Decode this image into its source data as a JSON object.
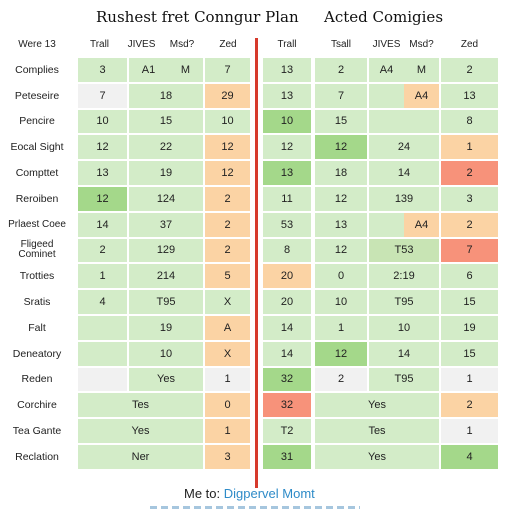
{
  "titles": {
    "left": "Rushest fret Conngur Plan",
    "right": "Acted Comigies"
  },
  "colors": {
    "g": "#d3ecc8",
    "G": "#a4d88a",
    "o": "#fbd3a4",
    "r": "#f7927a",
    "w": "#f1f1f1",
    "m": "#c8e4b4",
    "divider": "#d63a2c"
  },
  "left": {
    "header": [
      "Were 13",
      "Trall",
      "JIVES",
      "Msd?",
      "Zed"
    ],
    "rows": [
      {
        "label": "Complies",
        "cells": [
          {
            "t": "3",
            "c": "g"
          },
          {
            "t": "A1",
            "c": "g"
          },
          {
            "t": "M",
            "c": "g"
          },
          {
            "t": "7",
            "c": "g"
          }
        ]
      },
      {
        "label": "Peteseire",
        "cells": [
          {
            "t": "7",
            "c": "w"
          },
          {
            "t": "18",
            "c": "g",
            "s": 2
          },
          {
            "t": "29",
            "c": "o"
          }
        ]
      },
      {
        "label": "Pencire",
        "cells": [
          {
            "t": "10",
            "c": "g"
          },
          {
            "t": "15",
            "c": "g",
            "s": 2
          },
          {
            "t": "10",
            "c": "g"
          }
        ]
      },
      {
        "label": "Eocal Sight",
        "cells": [
          {
            "t": "12",
            "c": "g"
          },
          {
            "t": "22",
            "c": "g",
            "s": 2
          },
          {
            "t": "12",
            "c": "o"
          }
        ]
      },
      {
        "label": "Compttet",
        "cells": [
          {
            "t": "13",
            "c": "g"
          },
          {
            "t": "19",
            "c": "g",
            "s": 2
          },
          {
            "t": "12",
            "c": "o"
          }
        ]
      },
      {
        "label": "Reroiben",
        "cells": [
          {
            "t": "12",
            "c": "G"
          },
          {
            "t": "124",
            "c": "g",
            "s": 2
          },
          {
            "t": "2",
            "c": "o"
          }
        ]
      },
      {
        "label": "Prlaest Coee",
        "cells": [
          {
            "t": "14",
            "c": "g"
          },
          {
            "t": "37",
            "c": "g",
            "s": 2
          },
          {
            "t": "2",
            "c": "o"
          }
        ]
      },
      {
        "label": "Fligeed Cominet",
        "cells": [
          {
            "t": "2",
            "c": "g"
          },
          {
            "t": "129",
            "c": "g",
            "s": 2
          },
          {
            "t": "2",
            "c": "o"
          }
        ]
      },
      {
        "label": "Trotties",
        "cells": [
          {
            "t": "1",
            "c": "g"
          },
          {
            "t": "214",
            "c": "g",
            "s": 2
          },
          {
            "t": "5",
            "c": "o"
          }
        ]
      },
      {
        "label": "Sratis",
        "cells": [
          {
            "t": "4",
            "c": "g"
          },
          {
            "t": "T95",
            "c": "g",
            "s": 2
          },
          {
            "t": "X",
            "c": "g"
          }
        ]
      },
      {
        "label": "Falt",
        "cells": [
          {
            "t": "",
            "c": "g"
          },
          {
            "t": "19",
            "c": "g",
            "s": 2
          },
          {
            "t": "A",
            "c": "o"
          }
        ]
      },
      {
        "label": "Deneatory",
        "cells": [
          {
            "t": "",
            "c": "g"
          },
          {
            "t": "10",
            "c": "g",
            "s": 2
          },
          {
            "t": "X",
            "c": "o"
          }
        ]
      },
      {
        "label": "Reden",
        "cells": [
          {
            "t": "",
            "c": "w"
          },
          {
            "t": "Yes",
            "c": "g",
            "s": 2
          },
          {
            "t": "1",
            "c": "w"
          }
        ]
      },
      {
        "label": "Corchire",
        "cells": [
          {
            "t": "Tes",
            "c": "g",
            "s": 3
          },
          {
            "t": "0",
            "c": "o"
          }
        ]
      },
      {
        "label": "Tea Gante",
        "cells": [
          {
            "t": "Yes",
            "c": "g",
            "s": 3
          },
          {
            "t": "1",
            "c": "o"
          }
        ]
      },
      {
        "label": "Reclation",
        "cells": [
          {
            "t": "Ner",
            "c": "g",
            "s": 3
          },
          {
            "t": "3",
            "c": "o"
          }
        ]
      }
    ]
  },
  "right": {
    "header": [
      "Trall",
      "Tsall",
      "JIVES",
      "Msd?",
      "Zed"
    ],
    "rows": [
      {
        "cells": [
          {
            "t": "13",
            "c": "g"
          },
          {
            "t": "2",
            "c": "g"
          },
          {
            "t": "A4",
            "c": "g"
          },
          {
            "t": "M",
            "c": "g"
          },
          {
            "t": "2",
            "c": "g"
          }
        ]
      },
      {
        "cells": [
          {
            "t": "13",
            "c": "g"
          },
          {
            "t": "7",
            "c": "g"
          },
          {
            "t": "",
            "c": "g"
          },
          {
            "t": "A4",
            "c": "o"
          },
          {
            "t": "13",
            "c": "g"
          }
        ]
      },
      {
        "cells": [
          {
            "t": "10",
            "c": "G"
          },
          {
            "t": "15",
            "c": "g"
          },
          {
            "t": "",
            "c": "g",
            "s": 2
          },
          {
            "t": "8",
            "c": "g"
          }
        ]
      },
      {
        "cells": [
          {
            "t": "12",
            "c": "g"
          },
          {
            "t": "12",
            "c": "G"
          },
          {
            "t": "24",
            "c": "g",
            "s": 2
          },
          {
            "t": "1",
            "c": "o"
          }
        ]
      },
      {
        "cells": [
          {
            "t": "13",
            "c": "G"
          },
          {
            "t": "18",
            "c": "g"
          },
          {
            "t": "14",
            "c": "g",
            "s": 2
          },
          {
            "t": "2",
            "c": "r"
          }
        ]
      },
      {
        "cells": [
          {
            "t": "11",
            "c": "g"
          },
          {
            "t": "12",
            "c": "g"
          },
          {
            "t": "139",
            "c": "g",
            "s": 2
          },
          {
            "t": "3",
            "c": "g"
          }
        ]
      },
      {
        "cells": [
          {
            "t": "53",
            "c": "g"
          },
          {
            "t": "13",
            "c": "g"
          },
          {
            "t": "",
            "c": "g"
          },
          {
            "t": "A4",
            "c": "o"
          },
          {
            "t": "2",
            "c": "o"
          }
        ]
      },
      {
        "cells": [
          {
            "t": "8",
            "c": "g"
          },
          {
            "t": "12",
            "c": "g"
          },
          {
            "t": "T53",
            "c": "m",
            "s": 2
          },
          {
            "t": "7",
            "c": "r"
          }
        ]
      },
      {
        "cells": [
          {
            "t": "20",
            "c": "o"
          },
          {
            "t": "0",
            "c": "g"
          },
          {
            "t": "2:19",
            "c": "g",
            "s": 2
          },
          {
            "t": "6",
            "c": "g"
          }
        ]
      },
      {
        "cells": [
          {
            "t": "20",
            "c": "g"
          },
          {
            "t": "10",
            "c": "g"
          },
          {
            "t": "T95",
            "c": "g",
            "s": 2
          },
          {
            "t": "15",
            "c": "g"
          }
        ]
      },
      {
        "cells": [
          {
            "t": "14",
            "c": "g"
          },
          {
            "t": "1",
            "c": "g"
          },
          {
            "t": "10",
            "c": "g",
            "s": 2
          },
          {
            "t": "19",
            "c": "g"
          }
        ]
      },
      {
        "cells": [
          {
            "t": "14",
            "c": "g"
          },
          {
            "t": "12",
            "c": "G"
          },
          {
            "t": "14",
            "c": "g",
            "s": 2
          },
          {
            "t": "15",
            "c": "g"
          }
        ]
      },
      {
        "cells": [
          {
            "t": "32",
            "c": "G"
          },
          {
            "t": "2",
            "c": "w"
          },
          {
            "t": "T95",
            "c": "g",
            "s": 2
          },
          {
            "t": "1",
            "c": "w"
          }
        ]
      },
      {
        "cells": [
          {
            "t": "32",
            "c": "r"
          },
          {
            "t": "Yes",
            "c": "g",
            "s": 3
          },
          {
            "t": "2",
            "c": "o"
          }
        ]
      },
      {
        "cells": [
          {
            "t": "T2",
            "c": "g"
          },
          {
            "t": "Tes",
            "c": "g",
            "s": 3
          },
          {
            "t": "1",
            "c": "w"
          }
        ]
      },
      {
        "cells": [
          {
            "t": "31",
            "c": "G"
          },
          {
            "t": "Yes",
            "c": "g",
            "s": 3
          },
          {
            "t": "4",
            "c": "G"
          }
        ]
      }
    ]
  },
  "footer": {
    "prefix": "Me to:",
    "link": "Digpervel Momt"
  }
}
